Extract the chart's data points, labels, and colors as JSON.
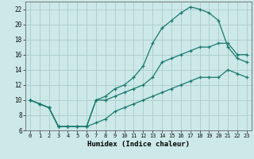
{
  "title": "",
  "xlabel": "Humidex (Indice chaleur)",
  "bg_color": "#cce8e8",
  "grid_color": "#aacccc",
  "line_color": "#1a7a6e",
  "xlim": [
    -0.5,
    23.5
  ],
  "ylim": [
    6,
    23
  ],
  "xticks": [
    0,
    1,
    2,
    3,
    4,
    5,
    6,
    7,
    8,
    9,
    10,
    11,
    12,
    13,
    14,
    15,
    16,
    17,
    18,
    19,
    20,
    21,
    22,
    23
  ],
  "yticks": [
    6,
    8,
    10,
    12,
    14,
    16,
    18,
    20,
    22
  ],
  "line_peak_x": [
    0,
    1,
    2,
    3,
    4,
    5,
    6,
    7,
    8,
    9,
    10,
    11,
    12,
    13,
    14,
    15,
    16,
    17,
    18,
    19,
    20,
    21,
    22,
    23
  ],
  "line_peak_y": [
    10,
    9.5,
    9,
    6.5,
    6.5,
    6.5,
    6.5,
    10,
    10.5,
    11.5,
    12,
    13,
    14.5,
    17.5,
    19.5,
    20.5,
    21.5,
    22.3,
    22,
    21.5,
    20.5,
    17,
    15.5,
    15
  ],
  "line_upper_x": [
    0,
    1,
    2,
    3,
    4,
    5,
    6,
    7,
    8,
    9,
    10,
    11,
    12,
    13,
    14,
    15,
    16,
    17,
    18,
    19,
    20,
    21,
    22,
    23
  ],
  "line_upper_y": [
    10,
    9.5,
    9,
    6.5,
    6.5,
    6.5,
    6.5,
    10,
    10,
    10.5,
    11,
    11.5,
    12,
    13,
    15,
    15.5,
    16,
    16.5,
    17,
    17,
    17.5,
    17.5,
    16,
    16
  ],
  "line_lower_x": [
    0,
    1,
    2,
    3,
    4,
    5,
    6,
    7,
    8,
    9,
    10,
    11,
    12,
    13,
    14,
    15,
    16,
    17,
    18,
    19,
    20,
    21,
    22,
    23
  ],
  "line_lower_y": [
    10,
    9.5,
    9,
    6.5,
    6.5,
    6.5,
    6.5,
    7,
    7.5,
    8.5,
    9,
    9.5,
    10,
    10.5,
    11,
    11.5,
    12,
    12.5,
    13,
    13,
    13,
    14,
    13.5,
    13
  ]
}
